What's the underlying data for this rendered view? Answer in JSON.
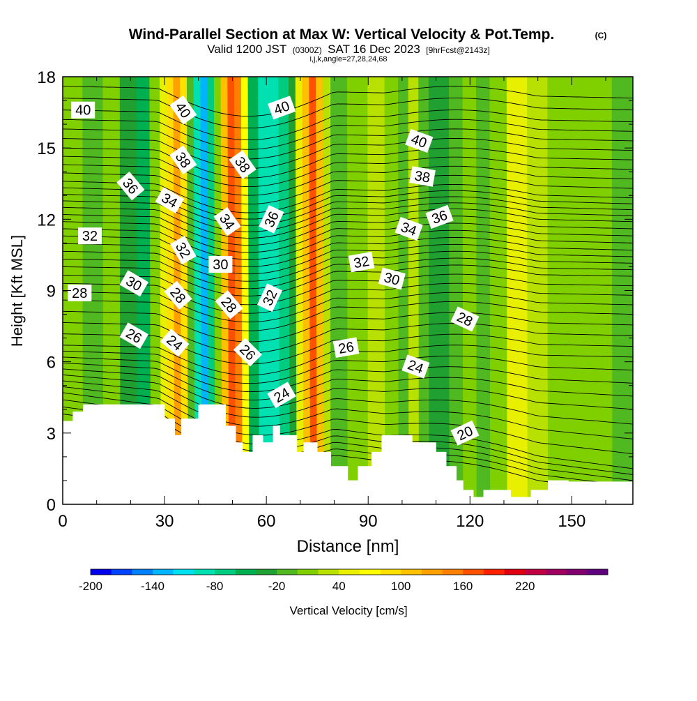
{
  "header": {
    "title": "Wind-Parallel Section at Max W: Vertical Velocity & Pot.Temp.",
    "copyright": "(C)",
    "valid_prefix": "Valid 1200 JST",
    "valid_zulu": "(0300Z)",
    "valid_date": "SAT 16 Dec 2023",
    "forecast": "[9hrFcst@2143z]",
    "indices": "i,j,k,angle=27,28,24,68"
  },
  "chart_data": {
    "type": "heatmap",
    "title": "Wind-Parallel Section at Max W: Vertical Velocity & Pot.Temp.",
    "xlabel": "Distance [nm]",
    "ylabel": "Height [Kft MSL]",
    "xlim": [
      0,
      168
    ],
    "ylim": [
      0,
      18
    ],
    "xticks": [
      "0",
      "30",
      "60",
      "90",
      "120",
      "150"
    ],
    "yticks": [
      "0",
      "3",
      "6",
      "9",
      "12",
      "15",
      "18"
    ],
    "colorbar": {
      "label": "Vertical Velocity [cm/s]",
      "tick_labels": [
        "-200",
        "-140",
        "-80",
        "-20",
        "40",
        "100",
        "160",
        "220"
      ],
      "colors": [
        "#0000ee",
        "#0040ff",
        "#0080ff",
        "#00b4ff",
        "#00e0f0",
        "#00e0b0",
        "#00cc80",
        "#00b050",
        "#20a030",
        "#50b820",
        "#80d000",
        "#b8e000",
        "#e8f000",
        "#ffff00",
        "#ffe000",
        "#ffc000",
        "#ffa000",
        "#ff8000",
        "#ff5000",
        "#ff2000",
        "#e00010",
        "#c00040",
        "#a00060",
        "#800070",
        "#600080"
      ]
    },
    "velocity_bands": [
      {
        "x": [
          0,
          2
        ],
        "value": 0
      },
      {
        "x": [
          2,
          6
        ],
        "value": 5
      },
      {
        "x": [
          6,
          12
        ],
        "value": -20
      },
      {
        "x": [
          12,
          17
        ],
        "value": 5
      },
      {
        "x": [
          17,
          22
        ],
        "value": -25
      },
      {
        "x": [
          22,
          26
        ],
        "value": -55
      },
      {
        "x": [
          26,
          29
        ],
        "value": 5
      },
      {
        "x": [
          29,
          31
        ],
        "value": 40
      },
      {
        "x": [
          31,
          33
        ],
        "value": 85
      },
      {
        "x": [
          33,
          35
        ],
        "value": 125
      },
      {
        "x": [
          35,
          37
        ],
        "value": 80
      },
      {
        "x": [
          37,
          39
        ],
        "value": -5
      },
      {
        "x": [
          39,
          41
        ],
        "value": -90
      },
      {
        "x": [
          41,
          43
        ],
        "value": -140
      },
      {
        "x": [
          43,
          45
        ],
        "value": -80
      },
      {
        "x": [
          45,
          47
        ],
        "value": 15
      },
      {
        "x": [
          47,
          49
        ],
        "value": 100
      },
      {
        "x": [
          49,
          51
        ],
        "value": 170
      },
      {
        "x": [
          51,
          53
        ],
        "value": 155
      },
      {
        "x": [
          53,
          55
        ],
        "value": 60
      },
      {
        "x": [
          55,
          58
        ],
        "value": -50
      },
      {
        "x": [
          58,
          64
        ],
        "value": -95
      },
      {
        "x": [
          64,
          67
        ],
        "value": -75
      },
      {
        "x": [
          67,
          69
        ],
        "value": -30
      },
      {
        "x": [
          69,
          71
        ],
        "value": 40
      },
      {
        "x": [
          71,
          73
        ],
        "value": 105
      },
      {
        "x": [
          73,
          75
        ],
        "value": 165
      },
      {
        "x": [
          75,
          77
        ],
        "value": 100
      },
      {
        "x": [
          77,
          79
        ],
        "value": 25
      },
      {
        "x": [
          79,
          84
        ],
        "value": -5
      },
      {
        "x": [
          84,
          90
        ],
        "value": 10
      },
      {
        "x": [
          90,
          95
        ],
        "value": 20
      },
      {
        "x": [
          95,
          99
        ],
        "value": 5
      },
      {
        "x": [
          99,
          102
        ],
        "value": -5
      },
      {
        "x": [
          102,
          105
        ],
        "value": 35
      },
      {
        "x": [
          105,
          108
        ],
        "value": -20
      },
      {
        "x": [
          108,
          114
        ],
        "value": -35
      },
      {
        "x": [
          114,
          118
        ],
        "value": -10
      },
      {
        "x": [
          118,
          122
        ],
        "value": 10
      },
      {
        "x": [
          122,
          126
        ],
        "value": -15
      },
      {
        "x": [
          126,
          131
        ],
        "value": 15
      },
      {
        "x": [
          131,
          137
        ],
        "value": 45
      },
      {
        "x": [
          137,
          143
        ],
        "value": 20
      },
      {
        "x": [
          143,
          149
        ],
        "value": 0
      },
      {
        "x": [
          149,
          156
        ],
        "value": 10
      },
      {
        "x": [
          156,
          162
        ],
        "value": 0
      },
      {
        "x": [
          162,
          168
        ],
        "value": -20
      }
    ],
    "terrain": {
      "x": [
        0,
        3,
        3,
        6,
        6,
        30,
        30,
        33,
        33,
        35,
        35,
        40,
        40,
        48,
        48,
        51,
        51,
        53,
        53,
        56,
        56,
        59,
        59,
        62,
        62,
        64,
        64,
        69,
        69,
        71,
        71,
        75,
        75,
        79,
        79,
        84,
        84,
        87,
        87,
        91,
        91,
        94,
        94,
        103,
        103,
        110,
        110,
        113,
        113,
        116,
        116,
        118,
        118,
        121,
        121,
        124,
        124,
        132,
        132,
        138,
        138,
        143,
        143,
        149,
        149,
        168
      ],
      "y": [
        3.5,
        3.5,
        3.9,
        3.9,
        4.2,
        4.2,
        3.6,
        3.6,
        2.9,
        2.9,
        3.6,
        3.6,
        4.2,
        4.2,
        3.3,
        3.3,
        2.6,
        2.6,
        2.2,
        2.2,
        2.9,
        2.9,
        2.6,
        2.6,
        3.3,
        3.3,
        2.9,
        2.9,
        2.2,
        2.2,
        2.6,
        2.6,
        2.2,
        2.2,
        1.6,
        1.6,
        1.0,
        1.0,
        1.6,
        1.6,
        2.2,
        2.2,
        2.9,
        2.9,
        2.6,
        2.6,
        2.2,
        2.2,
        1.6,
        1.6,
        1.0,
        1.0,
        0.6,
        0.6,
        0.3,
        0.3,
        0.6,
        0.6,
        0.3,
        0.3,
        0.6,
        0.6,
        1.0,
        1.0,
        0.95,
        0.95
      ]
    },
    "isentropes": [
      {
        "theta": 20,
        "y_west": 3.5,
        "y_east": 0.5
      },
      {
        "theta": 22,
        "y_west": 4.7,
        "y_east": 1.5
      },
      {
        "theta": 24,
        "y_west": 5.7,
        "y_east": 4.0
      },
      {
        "theta": 26,
        "y_west": 6.7,
        "y_east": 6.2
      },
      {
        "theta": 28,
        "y_west": 8.6,
        "y_east": 8.0
      },
      {
        "theta": 30,
        "y_west": 10.0,
        "y_east": 9.6
      },
      {
        "theta": 32,
        "y_west": 11.3,
        "y_east": 10.7
      },
      {
        "theta": 34,
        "y_west": 12.5,
        "y_east": 11.9
      },
      {
        "theta": 36,
        "y_west": 13.6,
        "y_east": 12.9
      },
      {
        "theta": 38,
        "y_west": 15.0,
        "y_east": 14.5
      },
      {
        "theta": 40,
        "y_west": 16.6,
        "y_east": 16.1
      }
    ],
    "contour_labels": [
      {
        "text": "40",
        "x": 6,
        "y": 16.6,
        "angle": 0
      },
      {
        "text": "40",
        "x": 35.5,
        "y": 16.6,
        "angle": 55
      },
      {
        "text": "40",
        "x": 64.5,
        "y": 16.7,
        "angle": -20
      },
      {
        "text": "40",
        "x": 105,
        "y": 15.3,
        "angle": 20
      },
      {
        "text": "38",
        "x": 35.5,
        "y": 14.5,
        "angle": 55
      },
      {
        "text": "38",
        "x": 53,
        "y": 14.3,
        "angle": 55
      },
      {
        "text": "38",
        "x": 106,
        "y": 13.8,
        "angle": 10
      },
      {
        "text": "36",
        "x": 20,
        "y": 13.4,
        "angle": 50
      },
      {
        "text": "36",
        "x": 111,
        "y": 12.1,
        "angle": -20
      },
      {
        "text": "36",
        "x": 61.5,
        "y": 12.0,
        "angle": -65
      },
      {
        "text": "34",
        "x": 31.5,
        "y": 12.8,
        "angle": 30
      },
      {
        "text": "34",
        "x": 48.5,
        "y": 11.9,
        "angle": 55
      },
      {
        "text": "34",
        "x": 102,
        "y": 11.6,
        "angle": 20
      },
      {
        "text": "32",
        "x": 8,
        "y": 11.3,
        "angle": 0
      },
      {
        "text": "32",
        "x": 35.5,
        "y": 10.7,
        "angle": 60
      },
      {
        "text": "32",
        "x": 88,
        "y": 10.2,
        "angle": -10
      },
      {
        "text": "32",
        "x": 61,
        "y": 8.7,
        "angle": -65
      },
      {
        "text": "30",
        "x": 46.5,
        "y": 10.1,
        "angle": 0
      },
      {
        "text": "30",
        "x": 21,
        "y": 9.3,
        "angle": 30
      },
      {
        "text": "30",
        "x": 97,
        "y": 9.5,
        "angle": 15
      },
      {
        "text": "28",
        "x": 5,
        "y": 8.9,
        "angle": 0
      },
      {
        "text": "28",
        "x": 34,
        "y": 8.8,
        "angle": 50
      },
      {
        "text": "28",
        "x": 49,
        "y": 8.4,
        "angle": 50
      },
      {
        "text": "28",
        "x": 118.5,
        "y": 7.8,
        "angle": 25
      },
      {
        "text": "26",
        "x": 21,
        "y": 7.1,
        "angle": 30
      },
      {
        "text": "26",
        "x": 54.5,
        "y": 6.4,
        "angle": 45
      },
      {
        "text": "26",
        "x": 83.5,
        "y": 6.6,
        "angle": -10
      },
      {
        "text": "24",
        "x": 33,
        "y": 6.8,
        "angle": 40
      },
      {
        "text": "24",
        "x": 104,
        "y": 5.8,
        "angle": 20
      },
      {
        "text": "24",
        "x": 64.5,
        "y": 4.6,
        "angle": -30
      },
      {
        "text": "20",
        "x": 118.5,
        "y": 3.0,
        "angle": -25
      }
    ]
  }
}
